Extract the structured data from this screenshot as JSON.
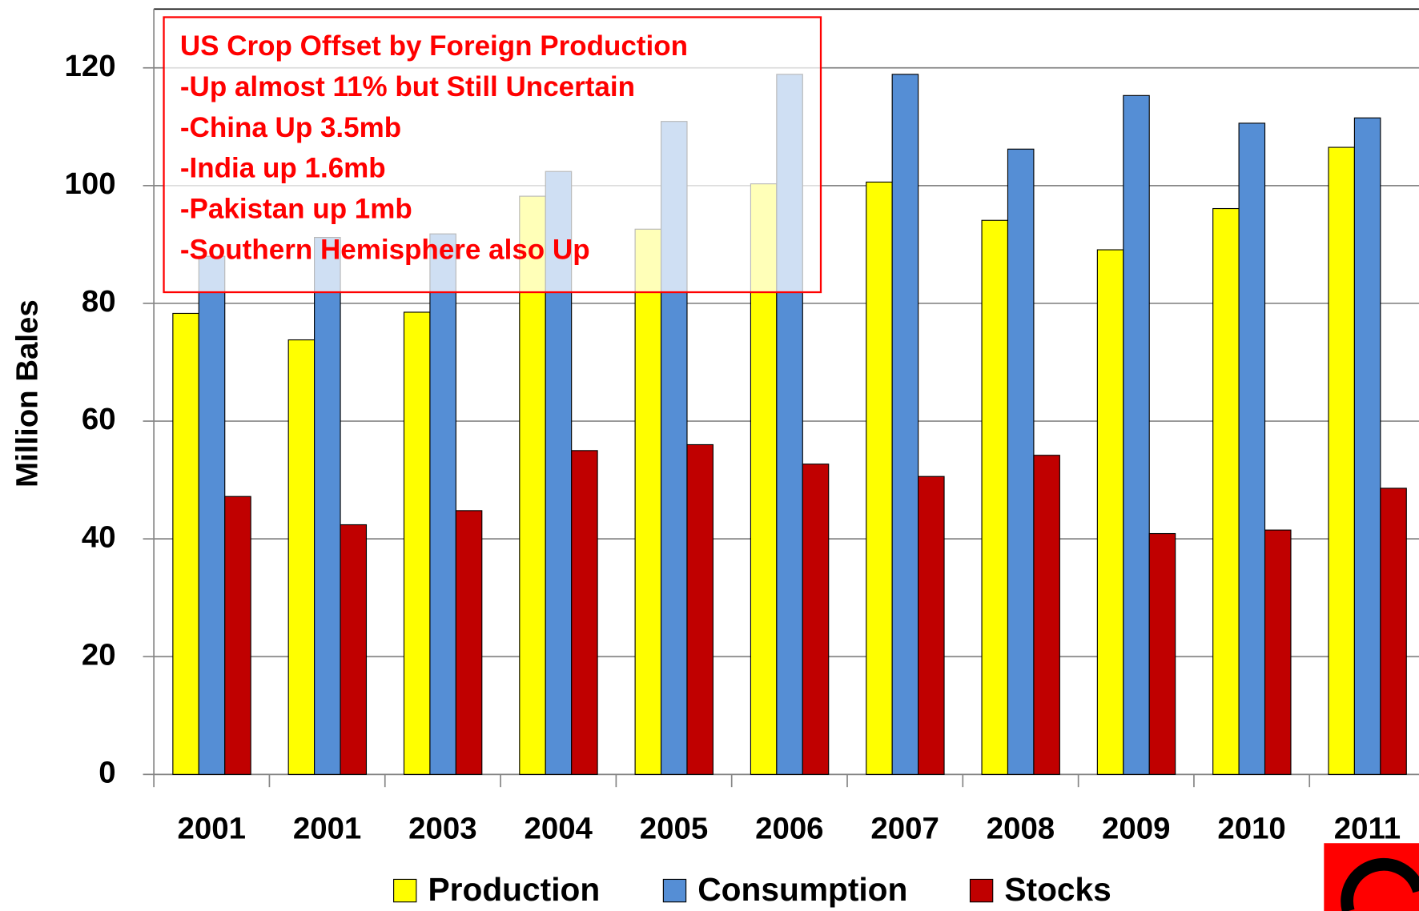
{
  "chart_data": {
    "type": "bar",
    "y_label": "Million Bales",
    "categories": [
      "2001",
      "2001",
      "2003",
      "2004",
      "2005",
      "2006",
      "2007",
      "2008",
      "2009",
      "2010",
      "2011"
    ],
    "series": [
      {
        "name": "Production",
        "color": "#ffff00",
        "values": [
          78.3,
          73.8,
          78.5,
          98.2,
          92.6,
          100.3,
          100.6,
          94.1,
          89.1,
          96.1,
          106.5
        ]
      },
      {
        "name": "Consumption",
        "color": "#558ed5",
        "values": [
          88,
          91.2,
          91.8,
          102.4,
          110.9,
          118.9,
          118.9,
          106.2,
          115.3,
          110.6,
          111.5
        ]
      },
      {
        "name": "Stocks",
        "color": "#c00000",
        "values": [
          47.2,
          42.4,
          44.8,
          55.0,
          56.0,
          52.7,
          50.6,
          54.2,
          40.9,
          41.5,
          48.6
        ]
      }
    ],
    "ylim": [
      0,
      120
    ],
    "yticks": [
      0,
      20,
      40,
      60,
      80,
      100,
      120
    ],
    "grid": true,
    "legend": "bottom",
    "annotation": [
      "US Crop Offset by Foreign Production",
      "-Up almost 11% but Still Uncertain",
      "-China Up 3.5mb",
      "-India up 1.6mb",
      "-Pakistan up 1mb",
      "-Southern Hemisphere also Up"
    ]
  }
}
